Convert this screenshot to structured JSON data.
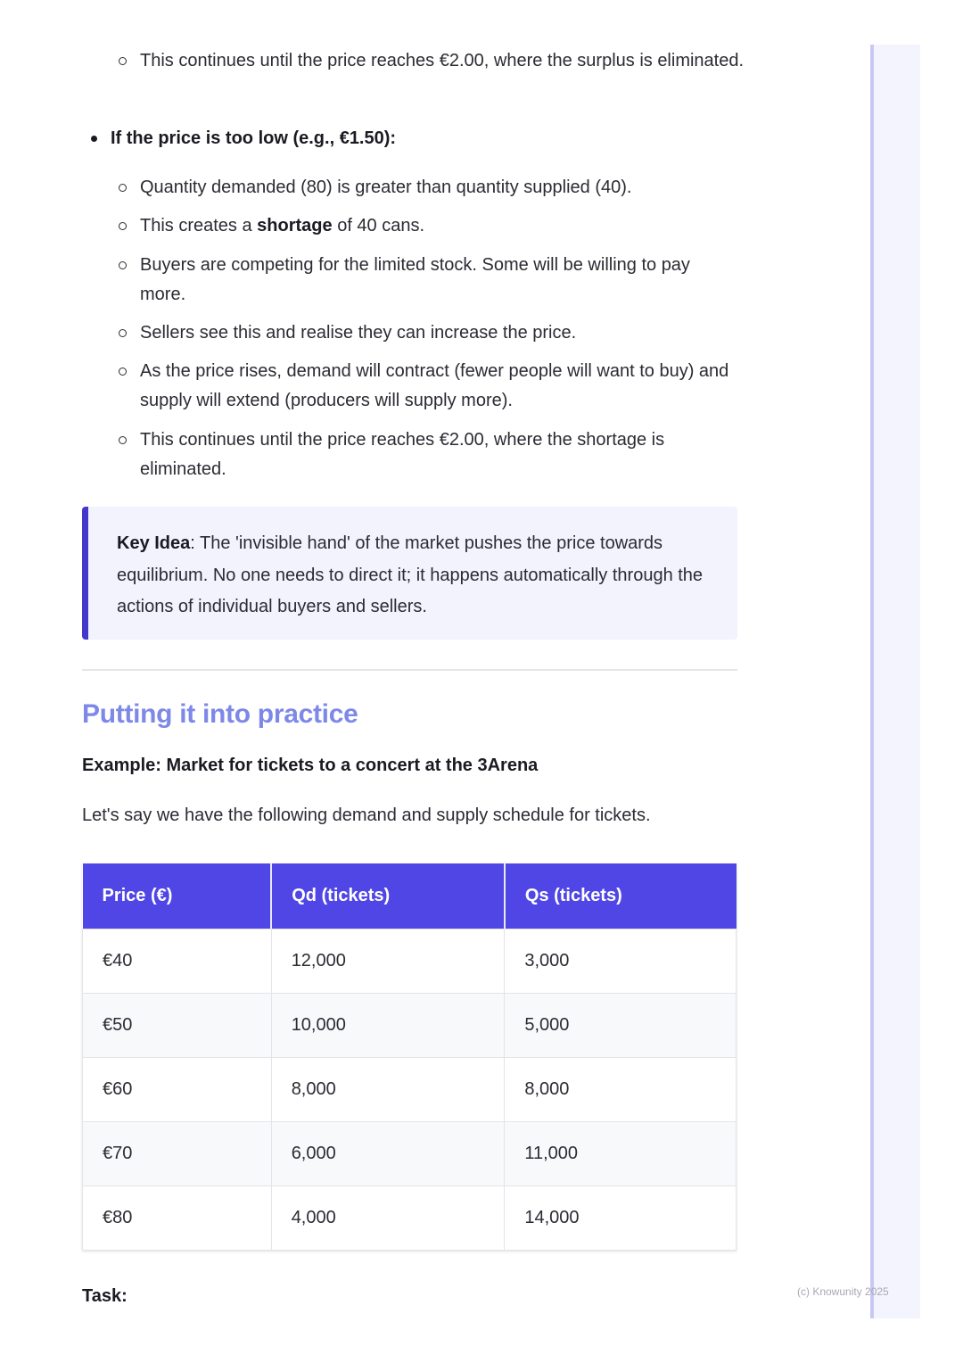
{
  "top_bullets": [
    "This continues until the price reaches €2.00, where the surplus is eliminated."
  ],
  "low_price": {
    "heading": "If the price is too low (e.g., €1.50):",
    "items": [
      {
        "text": "Quantity demanded (80) is greater than quantity supplied (40)."
      },
      {
        "pre": "This creates a ",
        "bold": "shortage",
        "post": " of 40 cans."
      },
      {
        "text": "Buyers are competing for the limited stock. Some will be willing to pay more."
      },
      {
        "text": "Sellers see this and realise they can increase the price."
      },
      {
        "text": "As the price rises, demand will contract (fewer people will want to buy) and supply will extend (producers will supply more)."
      },
      {
        "text": "This continues until the price reaches €2.00, where the shortage is eliminated."
      }
    ]
  },
  "key_idea": {
    "label": "Key Idea",
    "text": ": The 'invisible hand' of the market pushes the price towards equilibrium. No one needs to direct it; it happens automatically through the actions of individual buyers and sellers."
  },
  "section": {
    "title": "Putting it into practice",
    "example_heading": "Example: Market for tickets to a concert at the 3Arena",
    "intro": "Let's say we have the following demand and supply schedule for tickets."
  },
  "table": {
    "headers": [
      "Price (€)",
      "Qd (tickets)",
      "Qs (tickets)"
    ],
    "rows": [
      [
        "€40",
        "12,000",
        "3,000"
      ],
      [
        "€50",
        "10,000",
        "5,000"
      ],
      [
        "€60",
        "8,000",
        "8,000"
      ],
      [
        "€70",
        "6,000",
        "11,000"
      ],
      [
        "€80",
        "4,000",
        "14,000"
      ]
    ]
  },
  "task_label": "Task:",
  "footer": "(c) Knowunity 2025",
  "colors": {
    "accent": "#4f46e5",
    "heading": "#7d88e8",
    "callout_bg": "#f2f3fd"
  }
}
